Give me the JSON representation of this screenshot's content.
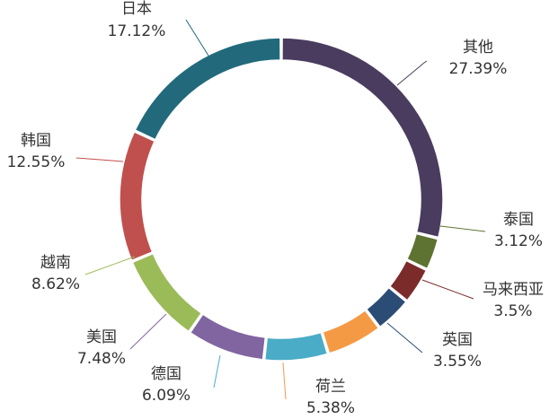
{
  "chart_data": {
    "type": "pie",
    "title": "",
    "unit": "%",
    "slices": [
      {
        "label": "其他",
        "value": 27.39,
        "display": "27.39%",
        "color": "#4a3c5e"
      },
      {
        "label": "泰国",
        "value": 3.12,
        "display": "3.12%",
        "color": "#5e7332"
      },
      {
        "label": "马来西亚",
        "value": 3.5,
        "display": "3.5%",
        "color": "#7c2b2b"
      },
      {
        "label": "英国",
        "value": 3.55,
        "display": "3.55%",
        "color": "#2b4d75"
      },
      {
        "label": "荷兰",
        "value": 5.38,
        "display": "5.38%",
        "color": "#f49a45"
      },
      {
        "label": "德国",
        "value": 6.09,
        "display": "6.09%",
        "color": "#4aacc6"
      },
      {
        "label": "美国",
        "value": 7.48,
        "display": "7.48%",
        "color": "#8065a1"
      },
      {
        "label": "越南",
        "value": 8.62,
        "display": "8.62%",
        "color": "#9bbb59"
      },
      {
        "label": "韩国",
        "value": 12.55,
        "display": "12.55%",
        "color": "#c0504d"
      },
      {
        "label": "日本",
        "value": 17.12,
        "display": "17.12%",
        "color": "#4f81bd"
      }
    ],
    "legend": "none"
  }
}
